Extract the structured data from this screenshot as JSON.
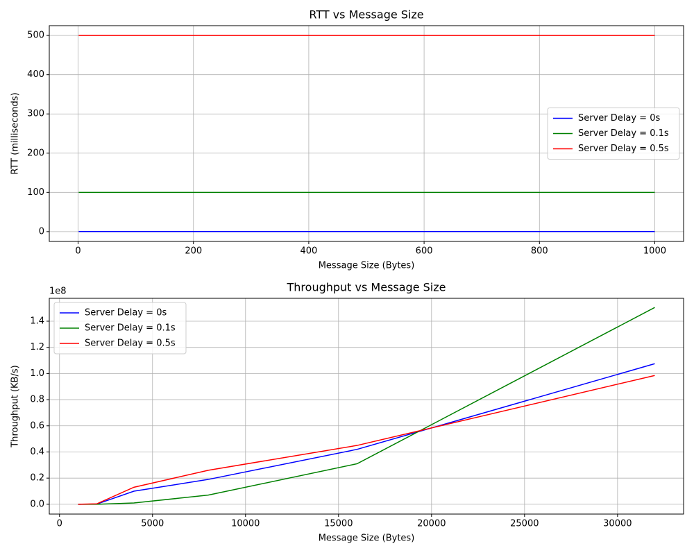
{
  "chart_data": [
    {
      "type": "line",
      "title": "RTT vs Message Size",
      "xlabel": "Message Size (Bytes)",
      "ylabel": "RTT (milliseconds)",
      "x": [
        1,
        10,
        100,
        1000
      ],
      "series": [
        {
          "name": "Server Delay = 0s",
          "color": "#0000ff",
          "values": [
            0.1,
            0.1,
            0.1,
            0.1
          ]
        },
        {
          "name": "Server Delay = 0.1s",
          "color": "#008000",
          "values": [
            100,
            100,
            100,
            100
          ]
        },
        {
          "name": "Server Delay = 0.5s",
          "color": "#ff0000",
          "values": [
            500,
            500,
            500,
            500
          ]
        }
      ],
      "xlim": [
        -50,
        1050
      ],
      "ylim": [
        -25,
        525
      ],
      "xticks": [
        0,
        200,
        400,
        600,
        800,
        1000
      ],
      "yticks": [
        0,
        100,
        200,
        300,
        400,
        500
      ],
      "grid": true,
      "legend": "center right"
    },
    {
      "type": "line",
      "title": "Throughput vs Message Size",
      "xlabel": "Message Size (Bytes)",
      "ylabel": "Throughput (KB/s)",
      "y_offset_label": "1e8",
      "x": [
        1000,
        2000,
        4000,
        8000,
        16000,
        32000
      ],
      "series": [
        {
          "name": "Server Delay = 0s",
          "color": "#0000ff",
          "values": [
            0,
            100000,
            10000000,
            19000000,
            42000000,
            107500000
          ]
        },
        {
          "name": "Server Delay = 0.1s",
          "color": "#008000",
          "values": [
            0,
            0,
            1000000,
            7000000,
            31000000,
            150500000
          ]
        },
        {
          "name": "Server Delay = 0.5s",
          "color": "#ff0000",
          "values": [
            0,
            300000,
            13000000,
            26000000,
            45000000,
            98500000
          ]
        }
      ],
      "xlim": [
        -550,
        33550
      ],
      "ylim": [
        -7500000,
        157500000
      ],
      "xticks": [
        0,
        5000,
        10000,
        15000,
        20000,
        25000,
        30000
      ],
      "yticks": [
        {
          "value": 0,
          "label": "0.0"
        },
        {
          "value": 20000000,
          "label": "0.2"
        },
        {
          "value": 40000000,
          "label": "0.4"
        },
        {
          "value": 60000000,
          "label": "0.6"
        },
        {
          "value": 80000000,
          "label": "0.8"
        },
        {
          "value": 100000000,
          "label": "1.0"
        },
        {
          "value": 120000000,
          "label": "1.2"
        },
        {
          "value": 140000000,
          "label": "1.4"
        }
      ],
      "grid": true,
      "legend": "upper left"
    }
  ]
}
